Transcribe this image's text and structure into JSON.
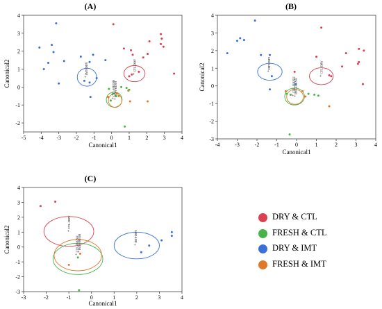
{
  "colors": {
    "DRY & CTL": "#d94150",
    "FRESH & CTL": "#46b448",
    "DRY & IMT": "#3a6fd8",
    "FRESH & IMT": "#e0782a"
  },
  "legend": {
    "items": [
      {
        "label": "DRY & CTL",
        "color": "#d94150"
      },
      {
        "label": "FRESH & CTL",
        "color": "#46b448"
      },
      {
        "label": "DRY & IMT",
        "color": "#3a6fd8"
      },
      {
        "label": "FRESH & IMT",
        "color": "#e0782a"
      }
    ]
  },
  "chart_data": [
    {
      "panel": "(A)",
      "type": "scatter",
      "xlabel": "Canonical1",
      "ylabel": "Canonical2",
      "xlim": [
        -5,
        4
      ],
      "ylim": [
        -2.5,
        4
      ],
      "xticks": [
        -5,
        -4,
        -3,
        -2,
        -1,
        0,
        1,
        2,
        3,
        4
      ],
      "yticks": [
        -2,
        -1,
        0,
        1,
        2,
        3,
        4
      ],
      "ellipses": [
        {
          "group": "DRY & CTL",
          "cx": 1.3,
          "cy": 0.75,
          "rx": 0.6,
          "ry": 0.45
        },
        {
          "group": "DRY & IMT",
          "cx": -1.4,
          "cy": 0.55,
          "rx": 0.55,
          "ry": 0.5
        },
        {
          "group": "FRESH & CTL",
          "cx": 0.15,
          "cy": -0.7,
          "rx": 0.45,
          "ry": 0.42
        },
        {
          "group": "FRESH & IMT",
          "cx": 0.2,
          "cy": -0.75,
          "rx": 0.38,
          "ry": 0.38
        }
      ],
      "centroid_labels": [
        {
          "text": "CTL-DRY",
          "x": 1.3,
          "y": 0.75
        },
        {
          "text": "IMT-DRY",
          "x": -1.45,
          "y": 0.6
        },
        {
          "text": "CTL-FRESH",
          "x": 0.1,
          "y": -0.6
        },
        {
          "text": "IMT-FRESH",
          "x": 0.22,
          "y": -0.65
        }
      ],
      "series": [
        {
          "name": "DRY & CTL",
          "points": [
            [
              0.1,
              3.5
            ],
            [
              0.7,
              2.15
            ],
            [
              1.1,
              2.05
            ],
            [
              1.2,
              1.8
            ],
            [
              1.55,
              0.85
            ],
            [
              1.8,
              1.65
            ],
            [
              2.05,
              1.85
            ],
            [
              2.15,
              2.55
            ],
            [
              2.8,
              2.95
            ],
            [
              2.85,
              2.7
            ],
            [
              2.8,
              2.4
            ],
            [
              2.95,
              2.25
            ],
            [
              3.55,
              0.75
            ],
            [
              1.0,
              0.6
            ],
            [
              1.15,
              0.7
            ]
          ]
        },
        {
          "name": "DRY & IMT",
          "points": [
            [
              -3.15,
              3.55
            ],
            [
              -3.4,
              2.35
            ],
            [
              -3.3,
              1.95
            ],
            [
              -4.1,
              2.2
            ],
            [
              -3.6,
              1.35
            ],
            [
              -2.7,
              1.45
            ],
            [
              -1.75,
              1.7
            ],
            [
              -1.25,
              1.4
            ],
            [
              -1.05,
              1.8
            ],
            [
              -0.35,
              1.5
            ],
            [
              -0.85,
              0.5
            ],
            [
              -1.55,
              0.35
            ],
            [
              -1.25,
              0.25
            ],
            [
              -1.2,
              -0.55
            ],
            [
              -3.0,
              0.2
            ],
            [
              -3.85,
              1.0
            ]
          ]
        },
        {
          "name": "FRESH & CTL",
          "points": [
            [
              -0.15,
              -0.1
            ],
            [
              0.55,
              0.0
            ],
            [
              0.85,
              -0.05
            ],
            [
              1.0,
              -0.15
            ],
            [
              0.75,
              -2.2
            ],
            [
              0.25,
              -0.5
            ],
            [
              0.05,
              -0.4
            ],
            [
              -0.05,
              -0.75
            ]
          ]
        },
        {
          "name": "FRESH & IMT",
          "points": [
            [
              0.3,
              -0.35
            ],
            [
              0.95,
              -0.2
            ],
            [
              1.05,
              -0.8
            ],
            [
              2.05,
              -0.8
            ],
            [
              -0.2,
              -0.55
            ],
            [
              0.4,
              -0.5
            ]
          ]
        }
      ]
    },
    {
      "panel": "(B)",
      "type": "scatter",
      "xlabel": "Canonical1",
      "ylabel": "Canonical2",
      "xlim": [
        -4,
        4
      ],
      "ylim": [
        -3,
        4
      ],
      "xticks": [
        -4,
        -3,
        -2,
        -1,
        0,
        1,
        2,
        3,
        4
      ],
      "yticks": [
        -3,
        -2,
        -1,
        0,
        1,
        2,
        3,
        4
      ],
      "ellipses": [
        {
          "group": "DRY & CTL",
          "cx": 1.25,
          "cy": 0.55,
          "rx": 0.6,
          "ry": 0.48
        },
        {
          "group": "DRY & IMT",
          "cx": -1.35,
          "cy": 0.8,
          "rx": 0.62,
          "ry": 0.48
        },
        {
          "group": "FRESH & CTL",
          "cx": -0.1,
          "cy": -0.6,
          "rx": 0.5,
          "ry": 0.48
        },
        {
          "group": "FRESH & IMT",
          "cx": -0.08,
          "cy": -0.62,
          "rx": 0.42,
          "ry": 0.42
        }
      ],
      "centroid_labels": [
        {
          "text": "CTL-DRY",
          "x": 1.25,
          "y": 0.6
        },
        {
          "text": "IMT-DRY",
          "x": -1.4,
          "y": 0.85
        },
        {
          "text": "CTL-FRESH",
          "x": -0.15,
          "y": -0.5
        },
        {
          "text": "IMT-FRESH",
          "x": -0.05,
          "y": -0.55
        }
      ],
      "series": [
        {
          "name": "DRY & CTL",
          "points": [
            [
              1.25,
              3.3
            ],
            [
              2.5,
              1.85
            ],
            [
              3.15,
              2.1
            ],
            [
              3.4,
              2.0
            ],
            [
              3.1,
              1.25
            ],
            [
              3.15,
              1.35
            ],
            [
              2.3,
              1.1
            ],
            [
              1.0,
              1.65
            ],
            [
              1.65,
              0.6
            ],
            [
              1.75,
              0.55
            ],
            [
              3.35,
              0.1
            ],
            [
              -0.1,
              0.8
            ]
          ]
        },
        {
          "name": "DRY & IMT",
          "points": [
            [
              -2.1,
              3.7
            ],
            [
              -2.85,
              2.7
            ],
            [
              -3.0,
              2.55
            ],
            [
              -2.65,
              2.6
            ],
            [
              -3.5,
              1.85
            ],
            [
              -1.8,
              1.75
            ],
            [
              -1.35,
              1.75
            ],
            [
              -1.25,
              0.55
            ],
            [
              -1.35,
              -0.2
            ],
            [
              -0.05,
              0.1
            ]
          ]
        },
        {
          "name": "FRESH & CTL",
          "points": [
            [
              -0.5,
              -0.45
            ],
            [
              -0.3,
              -0.5
            ],
            [
              0.6,
              -0.45
            ],
            [
              0.9,
              -0.5
            ],
            [
              1.1,
              -0.55
            ],
            [
              -0.35,
              -2.75
            ]
          ]
        },
        {
          "name": "FRESH & IMT",
          "points": [
            [
              -0.55,
              -0.3
            ],
            [
              0.45,
              -0.6
            ],
            [
              1.65,
              -1.15
            ],
            [
              0.3,
              -0.3
            ]
          ]
        }
      ]
    },
    {
      "panel": "(C)",
      "type": "scatter",
      "xlabel": "Canonical1",
      "ylabel": "Canonical2",
      "xlim": [
        -3,
        4
      ],
      "ylim": [
        -3,
        4
      ],
      "xticks": [
        -3,
        -2,
        -1,
        0,
        1,
        2,
        3,
        4
      ],
      "yticks": [
        -3,
        -2,
        -1,
        0,
        1,
        2,
        3,
        4
      ],
      "ellipses": [
        {
          "group": "DRY & CTL",
          "cx": -1.0,
          "cy": 1.05,
          "rx": 1.1,
          "ry": 1.0
        },
        {
          "group": "DRY & IMT",
          "cx": 2.0,
          "cy": 0.1,
          "rx": 1.0,
          "ry": 0.9
        },
        {
          "group": "FRESH & CTL",
          "cx": -0.6,
          "cy": -0.8,
          "rx": 1.1,
          "ry": 1.05
        },
        {
          "group": "FRESH & IMT",
          "cx": -0.6,
          "cy": -0.55,
          "rx": 1.05,
          "ry": 1.05
        }
      ],
      "centroid_labels": [
        {
          "text": "CTL-DRY",
          "x": -1.0,
          "y": 1.1
        },
        {
          "text": "IMT-DRY",
          "x": 1.95,
          "y": 0.2
        },
        {
          "text": "CTL-FRESH",
          "x": -0.65,
          "y": -0.45
        },
        {
          "text": "IMT-FRESH",
          "x": -0.55,
          "y": -0.3
        }
      ],
      "series": [
        {
          "name": "DRY & CTL",
          "points": [
            [
              -2.25,
              2.75
            ],
            [
              -1.6,
              3.05
            ]
          ]
        },
        {
          "name": "DRY & IMT",
          "points": [
            [
              3.55,
              1.0
            ],
            [
              3.55,
              0.75
            ],
            [
              3.1,
              0.45
            ],
            [
              2.55,
              0.1
            ],
            [
              2.2,
              -0.35
            ]
          ]
        },
        {
          "name": "FRESH & CTL",
          "points": [
            [
              -0.55,
              -2.9
            ],
            [
              -0.6,
              -0.7
            ]
          ]
        },
        {
          "name": "FRESH & IMT",
          "points": [
            [
              -1.0,
              -1.2
            ],
            [
              -0.5,
              -0.45
            ]
          ]
        }
      ]
    }
  ]
}
